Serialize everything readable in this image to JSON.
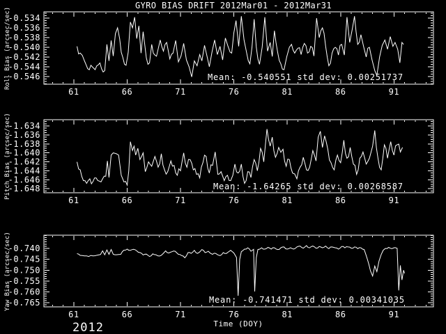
{
  "title": "GYRO BIAS DRIFT 2012Mar01 - 2012Mar31",
  "colors": {
    "background": "#000000",
    "foreground": "#ffffff"
  },
  "x_axis": {
    "label": "Time (DOY)",
    "year_label": "2012",
    "lim": [
      58.2,
      94.7
    ],
    "major_ticks": [
      61,
      66,
      71,
      76,
      81,
      86,
      91
    ],
    "minor_step": 1
  },
  "chart_data": [
    {
      "type": "line",
      "name": "roll-bias",
      "ylabel": "Roll Bias (arcsec/sec)",
      "ylim": [
        -0.5476,
        -0.5327
      ],
      "yticks": [
        -0.534,
        -0.536,
        -0.538,
        -0.54,
        -0.542,
        -0.544,
        -0.546
      ],
      "y_minor_step": 0.0005,
      "mean": -0.540551,
      "std_dev": 0.00251737,
      "annotation": "Mean: -0.540551 std dev: 0.00251737",
      "noise_amp": 0.0009,
      "series": {
        "x": [
          61.3,
          61.6,
          62.0,
          62.3,
          62.6,
          63.0,
          63.3,
          63.6,
          63.9,
          64.1,
          64.3,
          64.5,
          64.7,
          64.9,
          65.1,
          65.3,
          65.6,
          65.9,
          66.1,
          66.3,
          66.5,
          66.7,
          66.9,
          67.1,
          67.3,
          67.5,
          67.8,
          68.1,
          68.3,
          68.6,
          68.9,
          69.1,
          69.4,
          69.7,
          70.0,
          70.3,
          70.55,
          70.8,
          71.05,
          71.3,
          71.55,
          71.8,
          72.05,
          72.3,
          72.55,
          72.8,
          73.0,
          73.25,
          73.5,
          73.7,
          73.95,
          74.2,
          74.45,
          74.7,
          74.95,
          75.2,
          75.45,
          75.65,
          75.8,
          76.0,
          76.2,
          76.45,
          76.7,
          76.95,
          77.2,
          77.5,
          77.7,
          77.9,
          78.1,
          78.4,
          78.65,
          78.9,
          79.15,
          79.4,
          79.6,
          79.8,
          80.1,
          80.4,
          80.7,
          80.95,
          81.2,
          81.4,
          81.7,
          82.0,
          82.3,
          82.6,
          82.9,
          83.2,
          83.5,
          83.75,
          84.0,
          84.3,
          84.6,
          84.9,
          85.2,
          85.5,
          85.8,
          86.1,
          86.35,
          86.6,
          86.85,
          87.1,
          87.3,
          87.6,
          87.9,
          88.15,
          88.4,
          88.7,
          88.95,
          89.2,
          89.4,
          89.65,
          89.9,
          90.15,
          90.4,
          90.65,
          90.9,
          91.1,
          91.35,
          91.55,
          91.75,
          91.9
        ],
        "y": [
          -0.5398,
          -0.5412,
          -0.5428,
          -0.5444,
          -0.5437,
          -0.5446,
          -0.5436,
          -0.5444,
          -0.5448,
          -0.5394,
          -0.5428,
          -0.5386,
          -0.5418,
          -0.5372,
          -0.536,
          -0.5382,
          -0.5421,
          -0.5437,
          -0.541,
          -0.5348,
          -0.536,
          -0.5338,
          -0.5382,
          -0.5356,
          -0.5412,
          -0.5368,
          -0.5422,
          -0.5432,
          -0.5394,
          -0.5416,
          -0.5404,
          -0.5385,
          -0.5408,
          -0.539,
          -0.5424,
          -0.5412,
          -0.5386,
          -0.543,
          -0.5418,
          -0.5392,
          -0.5426,
          -0.544,
          -0.5461,
          -0.5428,
          -0.5438,
          -0.5415,
          -0.5428,
          -0.5396,
          -0.542,
          -0.544,
          -0.541,
          -0.5385,
          -0.5415,
          -0.5398,
          -0.5426,
          -0.5381,
          -0.5398,
          -0.541,
          -0.5412,
          -0.537,
          -0.5345,
          -0.5398,
          -0.5336,
          -0.5385,
          -0.5412,
          -0.5434,
          -0.54,
          -0.5342,
          -0.54,
          -0.5435,
          -0.54,
          -0.5338,
          -0.5408,
          -0.539,
          -0.5419,
          -0.5366,
          -0.541,
          -0.5434,
          -0.5446,
          -0.542,
          -0.54,
          -0.5394,
          -0.5412,
          -0.5402,
          -0.5415,
          -0.5392,
          -0.5412,
          -0.5398,
          -0.5418,
          -0.534,
          -0.538,
          -0.536,
          -0.5398,
          -0.5438,
          -0.5412,
          -0.54,
          -0.5416,
          -0.5394,
          -0.5416,
          -0.5338,
          -0.539,
          -0.5362,
          -0.5336,
          -0.5394,
          -0.5374,
          -0.5398,
          -0.542,
          -0.54,
          -0.5426,
          -0.5448,
          -0.5458,
          -0.542,
          -0.5396,
          -0.5385,
          -0.5404,
          -0.5378,
          -0.5398,
          -0.539,
          -0.5404,
          -0.5432,
          -0.539,
          -0.5394
        ]
      }
    },
    {
      "type": "line",
      "name": "pitch-bias",
      "ylabel": "Pitch Bias (arcsec/sec)",
      "ylim": [
        -1.6489,
        -1.6326
      ],
      "yticks": [
        -1.634,
        -1.636,
        -1.638,
        -1.64,
        -1.642,
        -1.644,
        -1.646,
        -1.648
      ],
      "y_minor_step": 0.0005,
      "mean": -1.64265,
      "std_dev": 0.00268587,
      "annotation": "Mean: -1.64265 std dev: 0.00268587",
      "noise_amp": 0.001,
      "series": {
        "x": [
          61.3,
          61.6,
          61.9,
          62.2,
          62.5,
          62.8,
          63.1,
          63.4,
          63.7,
          64.0,
          64.15,
          64.3,
          64.5,
          64.7,
          65.0,
          65.2,
          65.45,
          65.7,
          66.0,
          66.15,
          66.3,
          66.5,
          66.65,
          66.8,
          67.0,
          67.2,
          67.5,
          67.7,
          68.0,
          68.3,
          68.6,
          68.9,
          69.2,
          69.5,
          69.8,
          70.1,
          70.4,
          70.7,
          71.0,
          71.3,
          71.6,
          71.9,
          72.2,
          72.5,
          72.8,
          73.1,
          73.4,
          73.7,
          74.0,
          74.25,
          74.5,
          74.8,
          75.1,
          75.4,
          75.7,
          76.1,
          76.4,
          76.7,
          77.0,
          77.3,
          77.6,
          77.9,
          78.2,
          78.5,
          78.8,
          79.1,
          79.4,
          79.6,
          79.9,
          80.2,
          80.6,
          80.9,
          81.2,
          81.5,
          81.9,
          82.2,
          82.5,
          82.8,
          83.1,
          83.4,
          83.7,
          83.9,
          84.1,
          84.3,
          84.5,
          84.8,
          85.1,
          85.4,
          85.7,
          86.0,
          86.3,
          86.6,
          86.9,
          87.2,
          87.5,
          87.8,
          88.1,
          88.4,
          88.7,
          89.0,
          89.2,
          89.5,
          89.8,
          90.1,
          90.4,
          90.7,
          91.0,
          91.3,
          91.6,
          91.8
        ],
        "y": [
          -1.642,
          -1.6438,
          -1.6462,
          -1.6468,
          -1.6458,
          -1.6464,
          -1.6456,
          -1.6463,
          -1.6458,
          -1.6452,
          -1.6418,
          -1.6455,
          -1.6405,
          -1.64,
          -1.6402,
          -1.6405,
          -1.645,
          -1.6465,
          -1.6472,
          -1.644,
          -1.6375,
          -1.6395,
          -1.6385,
          -1.6405,
          -1.639,
          -1.6415,
          -1.64,
          -1.6442,
          -1.642,
          -1.643,
          -1.6408,
          -1.6432,
          -1.6402,
          -1.6438,
          -1.6442,
          -1.6418,
          -1.6428,
          -1.645,
          -1.644,
          -1.64,
          -1.6432,
          -1.6415,
          -1.6438,
          -1.6448,
          -1.6456,
          -1.6422,
          -1.6408,
          -1.6445,
          -1.6428,
          -1.6398,
          -1.6448,
          -1.6442,
          -1.6462,
          -1.645,
          -1.6462,
          -1.6425,
          -1.6445,
          -1.6425,
          -1.6468,
          -1.6442,
          -1.6455,
          -1.6415,
          -1.644,
          -1.639,
          -1.642,
          -1.6347,
          -1.6385,
          -1.6365,
          -1.641,
          -1.6388,
          -1.6392,
          -1.643,
          -1.6415,
          -1.6445,
          -1.6458,
          -1.6432,
          -1.641,
          -1.6438,
          -1.6432,
          -1.6395,
          -1.6418,
          -1.6365,
          -1.6352,
          -1.6388,
          -1.6362,
          -1.6392,
          -1.6422,
          -1.6438,
          -1.6405,
          -1.6422,
          -1.6372,
          -1.6412,
          -1.6388,
          -1.6425,
          -1.6448,
          -1.6412,
          -1.6398,
          -1.6425,
          -1.6412,
          -1.6385,
          -1.635,
          -1.6412,
          -1.6438,
          -1.6382,
          -1.6412,
          -1.6375,
          -1.6405,
          -1.6382,
          -1.6398,
          -1.6388
        ]
      }
    },
    {
      "type": "line",
      "name": "yaw-bias",
      "ylabel": "Yaw Bias (arcsec/sec)",
      "ylim": [
        -0.7669,
        -0.7339
      ],
      "yticks": [
        -0.74,
        -0.745,
        -0.75,
        -0.755,
        -0.76,
        -0.765
      ],
      "y_minor_step": 0.001,
      "mean": -0.741471,
      "std_dev": 0.00341035,
      "annotation": "Mean: -0.741471 std dev: 0.00341035",
      "noise_amp": 0.00035,
      "series": {
        "x": [
          61.3,
          61.6,
          62.0,
          62.4,
          62.8,
          63.2,
          63.5,
          63.7,
          63.9,
          64.1,
          64.3,
          64.5,
          64.7,
          65.0,
          65.4,
          65.7,
          66.0,
          66.3,
          66.6,
          66.9,
          67.2,
          67.5,
          67.8,
          68.1,
          68.4,
          68.7,
          69.0,
          69.3,
          69.6,
          69.9,
          70.2,
          70.5,
          70.8,
          71.1,
          71.4,
          71.7,
          72.0,
          72.3,
          72.6,
          73.0,
          73.3,
          73.6,
          74.0,
          74.3,
          74.7,
          75.0,
          75.3,
          75.7,
          76.0,
          76.25,
          76.4,
          76.55,
          76.7,
          77.0,
          77.3,
          77.6,
          77.85,
          77.95,
          78.1,
          78.25,
          78.6,
          78.9,
          79.2,
          79.5,
          79.8,
          80.1,
          80.4,
          80.7,
          81.0,
          81.3,
          81.6,
          81.9,
          82.2,
          82.5,
          82.8,
          83.1,
          83.4,
          83.7,
          84.0,
          84.3,
          84.6,
          84.9,
          85.2,
          85.5,
          85.8,
          86.1,
          86.4,
          86.7,
          87.0,
          87.3,
          87.6,
          87.9,
          88.2,
          88.5,
          88.8,
          89.0,
          89.2,
          89.4,
          89.6,
          89.8,
          90.0,
          90.2,
          90.5,
          90.8,
          91.1,
          91.3,
          91.45,
          91.6,
          91.75,
          91.9,
          92.0
        ],
        "y": [
          -0.7424,
          -0.7432,
          -0.7434,
          -0.7437,
          -0.7434,
          -0.7431,
          -0.7428,
          -0.7411,
          -0.7429,
          -0.7407,
          -0.7427,
          -0.7405,
          -0.7427,
          -0.7429,
          -0.7427,
          -0.7408,
          -0.7403,
          -0.7409,
          -0.7404,
          -0.7411,
          -0.7419,
          -0.743,
          -0.7426,
          -0.7437,
          -0.7425,
          -0.7429,
          -0.7435,
          -0.7427,
          -0.7411,
          -0.7421,
          -0.7415,
          -0.7413,
          -0.7427,
          -0.7433,
          -0.7443,
          -0.7419,
          -0.7423,
          -0.7409,
          -0.7423,
          -0.7405,
          -0.7419,
          -0.7413,
          -0.7427,
          -0.7423,
          -0.7433,
          -0.7419,
          -0.7423,
          -0.7409,
          -0.7421,
          -0.7442,
          -0.7618,
          -0.745,
          -0.7415,
          -0.7403,
          -0.7397,
          -0.7413,
          -0.7404,
          -0.7598,
          -0.7442,
          -0.7405,
          -0.7397,
          -0.7403,
          -0.7395,
          -0.7403,
          -0.7397,
          -0.7405,
          -0.7397,
          -0.7393,
          -0.7403,
          -0.7397,
          -0.7403,
          -0.7393,
          -0.7389,
          -0.7399,
          -0.7387,
          -0.7397,
          -0.7389,
          -0.7399,
          -0.7391,
          -0.7397,
          -0.7389,
          -0.7401,
          -0.7393,
          -0.7397,
          -0.7403,
          -0.7391,
          -0.7397,
          -0.7393,
          -0.7399,
          -0.7393,
          -0.7401,
          -0.7397,
          -0.7405,
          -0.7448,
          -0.7503,
          -0.7527,
          -0.7481,
          -0.7507,
          -0.7458,
          -0.7428,
          -0.7408,
          -0.74,
          -0.7395,
          -0.7401,
          -0.7396,
          -0.74,
          -0.7593,
          -0.7478,
          -0.7545,
          -0.75,
          -0.7515
        ]
      }
    }
  ]
}
